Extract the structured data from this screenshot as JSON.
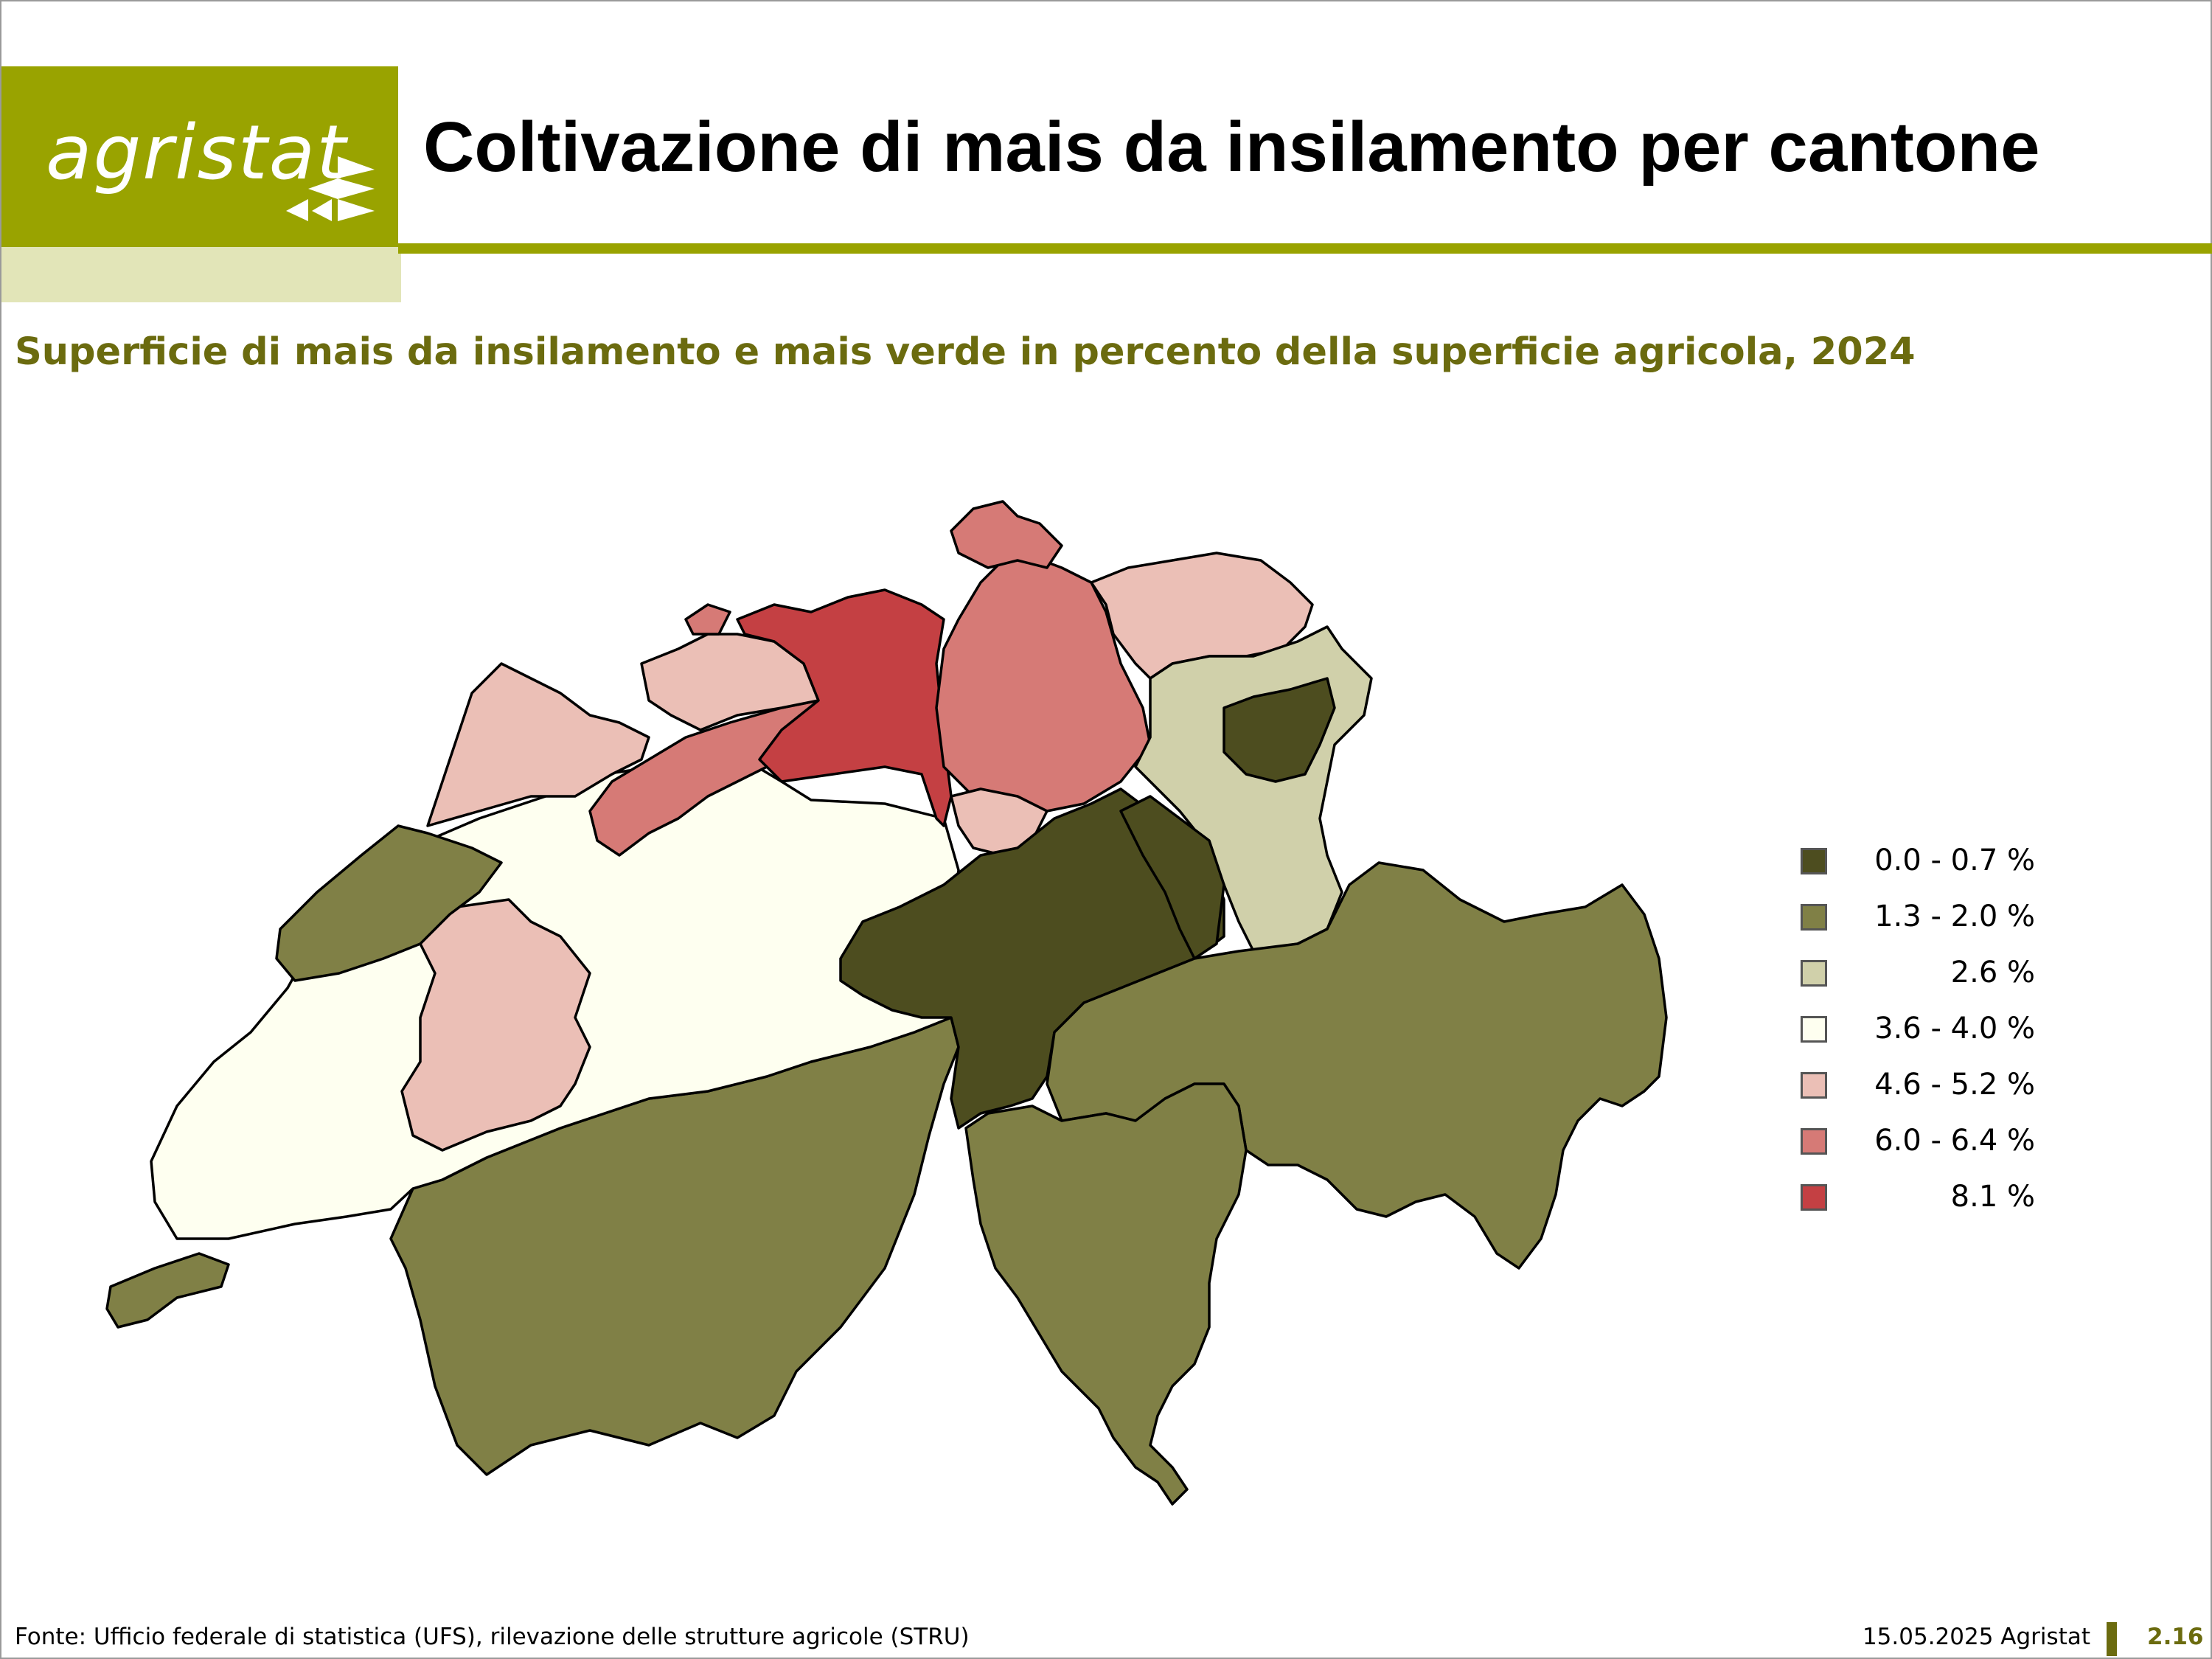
{
  "header": {
    "logo_text": "agristat",
    "title": "Coltivazione di mais da insilamento per cantone",
    "brand_color": "#99a300"
  },
  "subtitle": "Superficie di mais da insilamento e mais verde in percento della superficie agricola, 2024",
  "legend": {
    "items": [
      {
        "label": "0.0 - 0.7 %",
        "color": "#4d4d1f"
      },
      {
        "label": "1.3 - 2.0 %",
        "color": "#808046"
      },
      {
        "label": "2.6 %",
        "color": "#d0d0aa"
      },
      {
        "label": "3.6 - 4.0 %",
        "color": "#fefff0"
      },
      {
        "label": "4.6 - 5.2 %",
        "color": "#ebbfb6"
      },
      {
        "label": "6.0 - 6.4 %",
        "color": "#d67a76"
      },
      {
        "label": "8.1 %",
        "color": "#c44043"
      }
    ]
  },
  "footer": {
    "source": "Fonte: Ufficio federale di statistica (UFS), rilevazione delle strutture agricole (STRU)",
    "date": "15.05.2025 Agristat",
    "page": "2.16"
  }
}
